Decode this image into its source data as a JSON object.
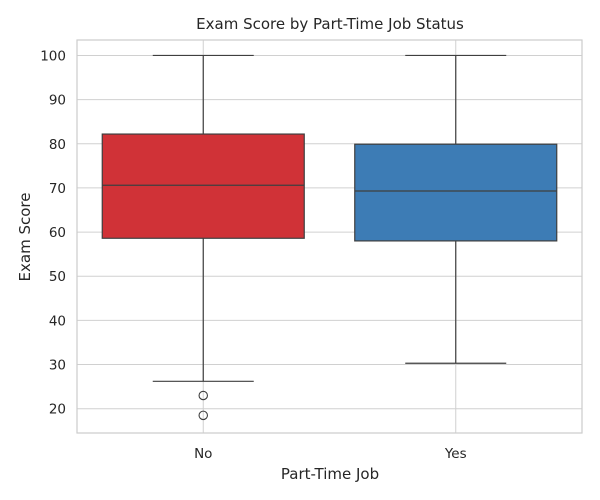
{
  "chart_data": {
    "type": "box",
    "title": "Exam Score by Part-Time Job Status",
    "xlabel": "Part-Time Job",
    "ylabel": "Exam Score",
    "categories": [
      "No",
      "Yes"
    ],
    "yticks": [
      20,
      30,
      40,
      50,
      60,
      70,
      80,
      90,
      100
    ],
    "ylim": [
      14.5,
      103.5
    ],
    "grid": true,
    "boxes": [
      {
        "category": "No",
        "whisker_low": 26.2,
        "q1": 58.6,
        "median": 70.6,
        "q3": 82.2,
        "whisker_high": 100,
        "outliers": [
          23.0,
          18.5
        ],
        "color": "#d03237"
      },
      {
        "category": "Yes",
        "whisker_low": 30.3,
        "q1": 58.0,
        "median": 69.3,
        "q3": 79.9,
        "whisker_high": 100,
        "outliers": [],
        "color": "#3d7cb5"
      }
    ]
  }
}
